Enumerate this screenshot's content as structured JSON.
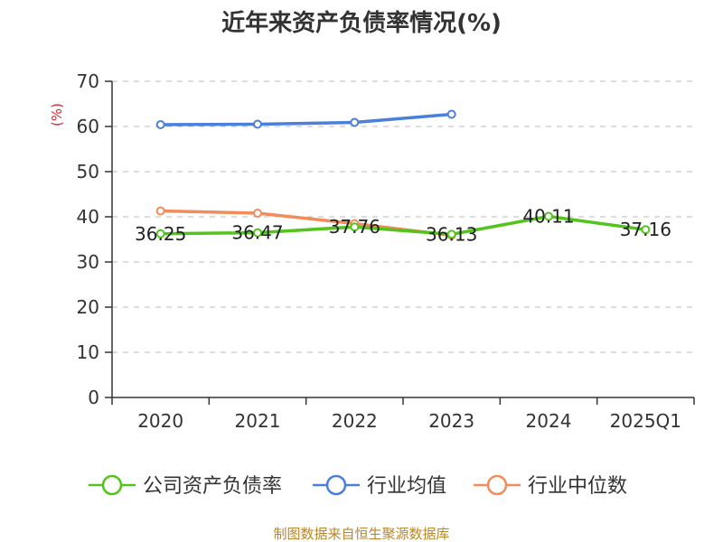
{
  "chart_data": {
    "type": "line",
    "title": "近年来资产负债率情况(%)",
    "ylabel": "(%)",
    "ylim": [
      0,
      70
    ],
    "yticks": [
      0,
      10,
      20,
      30,
      40,
      50,
      60,
      70
    ],
    "categories": [
      "2020",
      "2021",
      "2022",
      "2023",
      "2024",
      "2025Q1"
    ],
    "grid": true,
    "legend_position": "bottom",
    "series": [
      {
        "name": "公司资产负债率",
        "color": "#52c41a",
        "values": [
          36.25,
          36.47,
          37.76,
          36.13,
          40.11,
          37.16
        ],
        "labels": [
          "36.25",
          "36.47",
          "37.76",
          "36.13",
          "40.11",
          "37.16"
        ]
      },
      {
        "name": "行业均值",
        "color": "#4a7fdc",
        "values": [
          60.4,
          60.5,
          60.9,
          62.7,
          null,
          null
        ]
      },
      {
        "name": "行业中位数",
        "color": "#f28c5a",
        "values": [
          41.3,
          40.8,
          38.5,
          35.9,
          null,
          null
        ]
      }
    ]
  },
  "footer": {
    "source": "制图数据来自恒生聚源数据库"
  }
}
